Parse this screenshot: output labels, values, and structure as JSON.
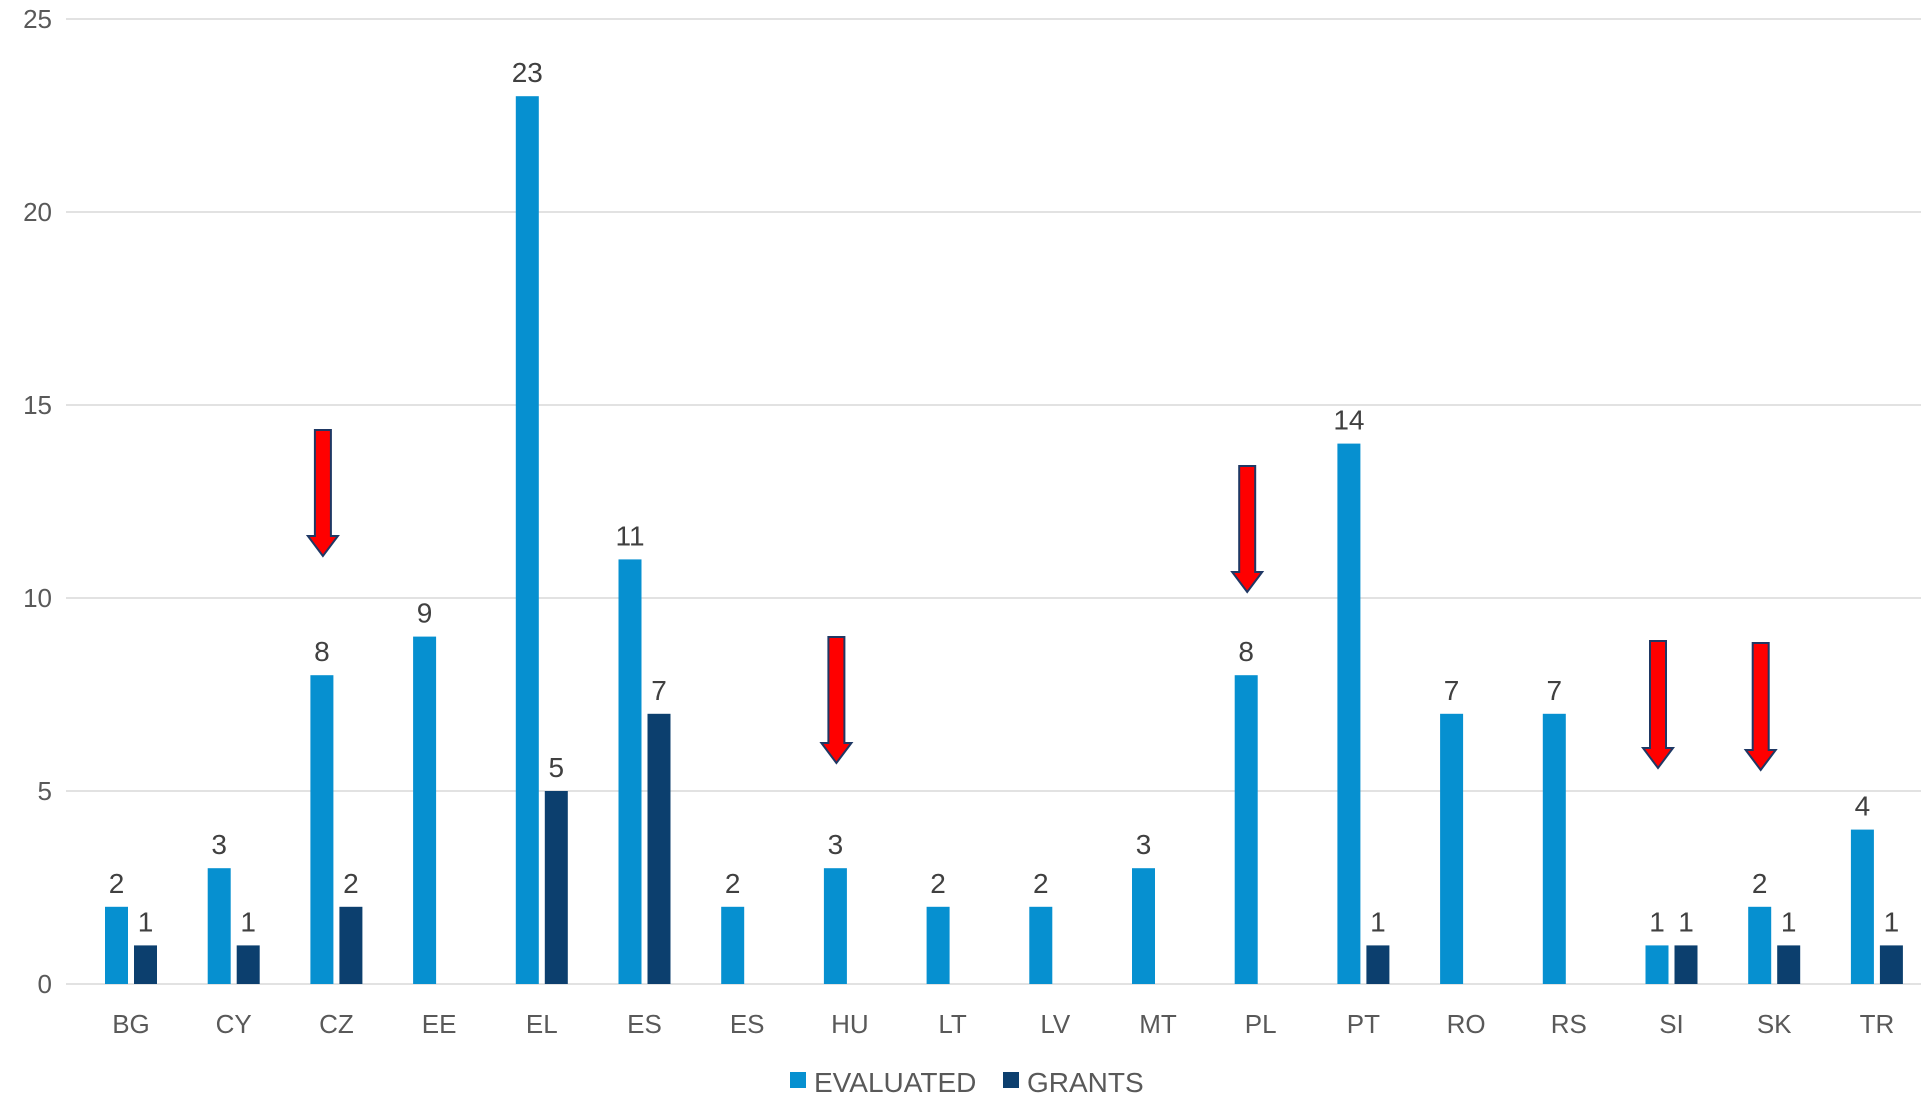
{
  "chart_data": {
    "type": "bar",
    "categories": [
      "BG",
      "CY",
      "CZ",
      "EE",
      "EL",
      "ES",
      "ES",
      "HU",
      "LT",
      "LV",
      "MT",
      "PL",
      "PT",
      "RO",
      "RS",
      "SI",
      "SK",
      "TR"
    ],
    "series": [
      {
        "name": "EVALUATED",
        "values": [
          2,
          3,
          8,
          9,
          23,
          11,
          2,
          3,
          2,
          2,
          3,
          8,
          14,
          7,
          7,
          1,
          2,
          4
        ]
      },
      {
        "name": "GRANTS",
        "values": [
          1,
          1,
          2,
          null,
          5,
          7,
          null,
          null,
          null,
          null,
          null,
          null,
          1,
          null,
          null,
          1,
          1,
          1
        ]
      }
    ],
    "ylim": [
      0,
      25
    ],
    "yticks": [
      "0",
      "5",
      "10",
      "15",
      "20",
      "25"
    ],
    "grid": true,
    "legend_placement": "bottom",
    "annotations": {
      "red_arrows_over": [
        "CZ",
        "HU",
        "PL",
        "SI",
        "SK"
      ]
    }
  },
  "colors": {
    "evaluated": "#0690D0",
    "grants": "#0C3F6E",
    "arrow_fill": "#FF0000",
    "arrow_stroke": "#1F3864",
    "grid": "#D9D9D9"
  }
}
